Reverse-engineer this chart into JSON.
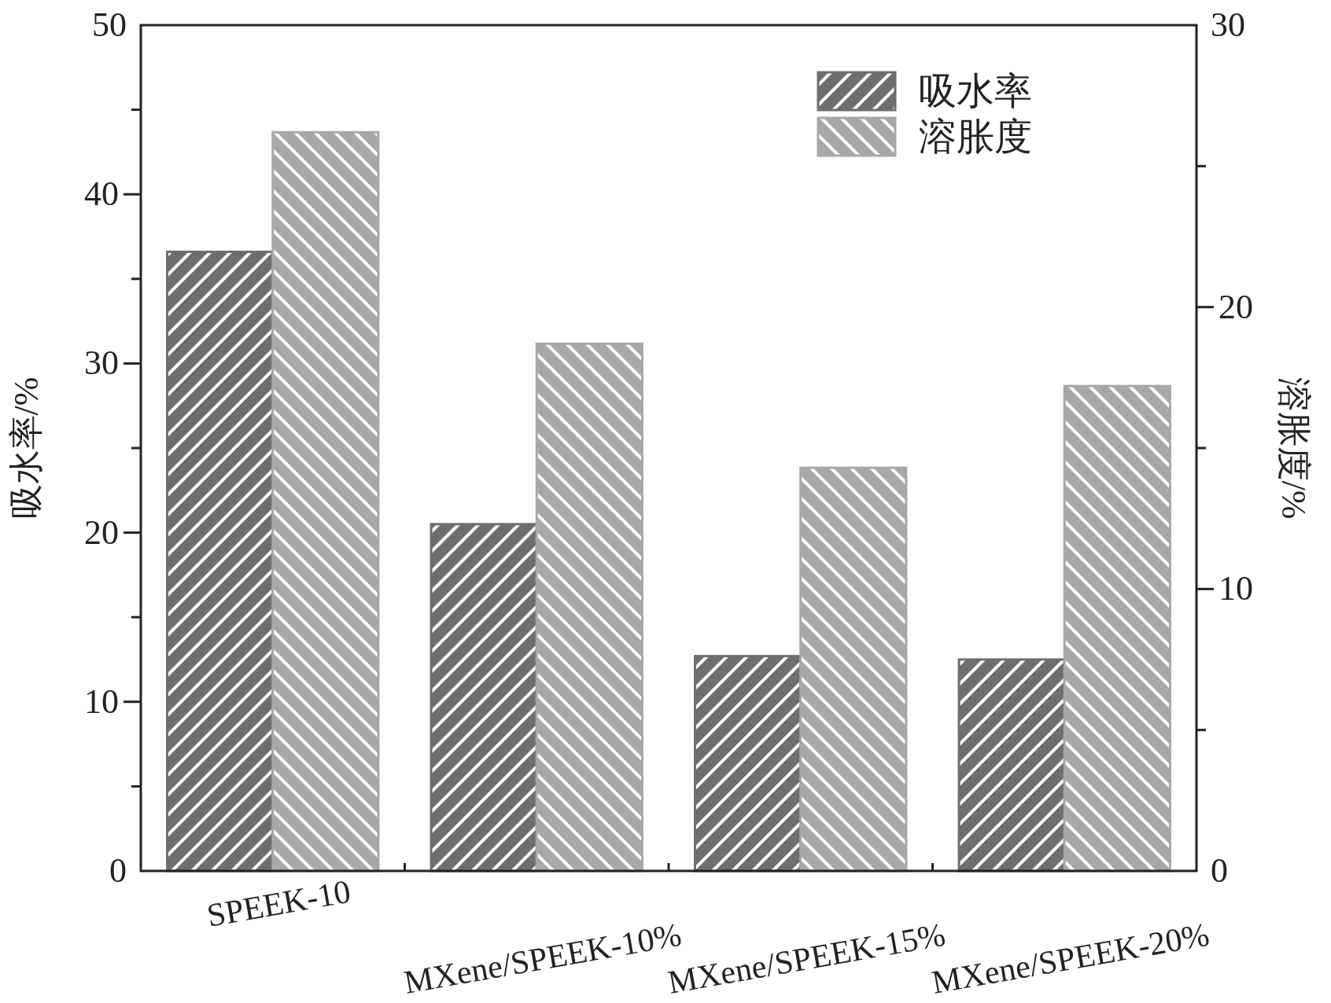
{
  "chart_data": {
    "type": "bar",
    "categories": [
      "SPEEK-10",
      "MXene/SPEEK-10%",
      "MXene/SPEEK-15%",
      "MXene/SPEEK-20%"
    ],
    "ylabel": "吸水率/%",
    "y2label": "溶胀度/%",
    "ylim": [
      0,
      50
    ],
    "yticks": [
      0,
      {
        "value": 5,
        "label": null
      },
      10,
      {
        "value": 15,
        "label": null
      },
      20,
      {
        "value": 25,
        "label": null
      },
      30,
      {
        "value": 35,
        "label": null
      },
      40,
      {
        "value": 45,
        "label": null
      },
      50
    ],
    "y2lim": [
      0,
      30
    ],
    "y2ticks": [
      0,
      {
        "value": 5,
        "label": null
      },
      10,
      {
        "value": 15,
        "label": null
      },
      20,
      {
        "value": 25,
        "label": null
      },
      30
    ],
    "series": [
      {
        "name": "吸水率",
        "color": "#6e6e6e",
        "values": [
          36.6,
          20.5,
          12.7,
          12.5
        ]
      },
      {
        "name": "溶胀度",
        "color": "#a8a8a8",
        "axis": "y2",
        "values": [
          26.2,
          18.7,
          14.3,
          17.2
        ]
      }
    ],
    "legend": "top right",
    "grid": false
  }
}
